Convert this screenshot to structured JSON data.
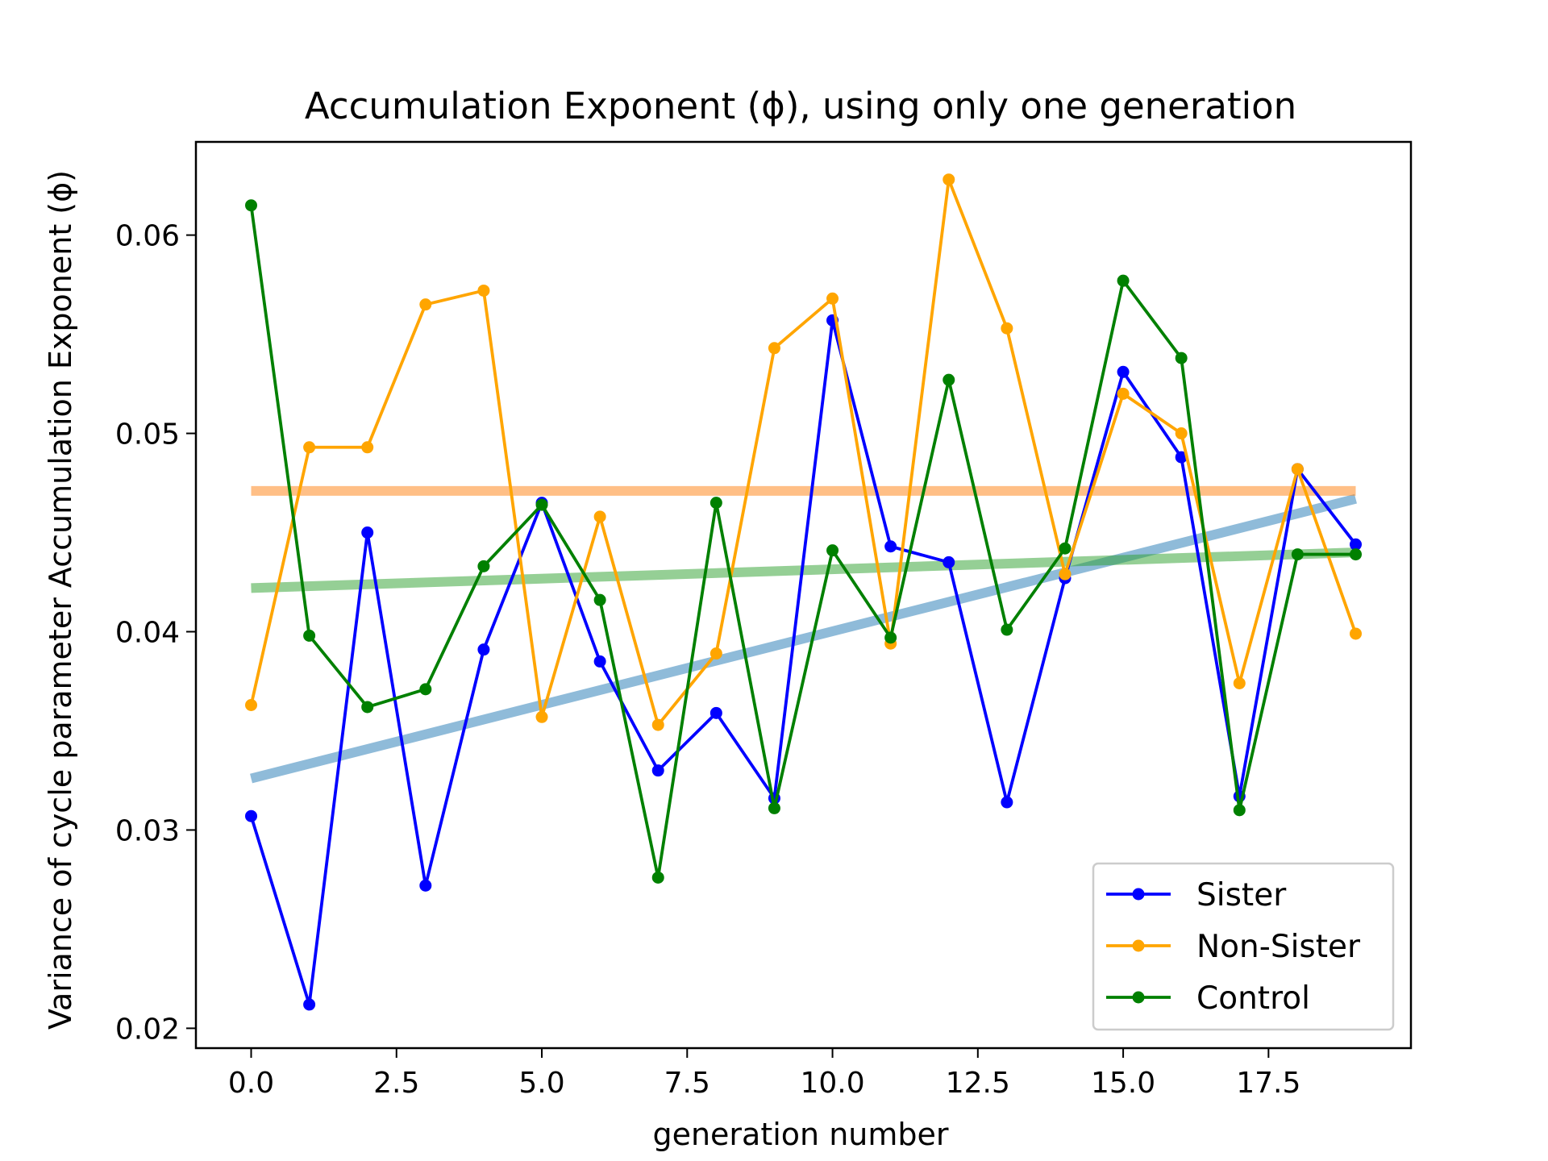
{
  "chart_data": {
    "type": "line",
    "title": "Accumulation Exponent (ϕ), using only one generation",
    "xlabel": "generation number",
    "ylabel": "Variance of cycle parameter Accumulation Exponent (ϕ)",
    "xlim": [
      -0.95,
      19.95
    ],
    "ylim": [
      0.019,
      0.0647
    ],
    "xticks": [
      0.0,
      2.5,
      5.0,
      7.5,
      10.0,
      12.5,
      15.0,
      17.5
    ],
    "xtick_labels": [
      "0.0",
      "2.5",
      "5.0",
      "7.5",
      "10.0",
      "12.5",
      "15.0",
      "17.5"
    ],
    "yticks": [
      0.02,
      0.03,
      0.04,
      0.05,
      0.06
    ],
    "ytick_labels": [
      "0.02",
      "0.03",
      "0.04",
      "0.05",
      "0.06"
    ],
    "grid": false,
    "legend_position": "lower-right",
    "x": [
      0,
      1,
      2,
      3,
      4,
      5,
      6,
      7,
      8,
      9,
      10,
      11,
      12,
      13,
      14,
      15,
      16,
      17,
      18,
      19
    ],
    "series": [
      {
        "name": "Sister",
        "color": "#0000ff",
        "values": [
          0.0307,
          0.0212,
          0.045,
          0.0272,
          0.0391,
          0.0465,
          0.0385,
          0.033,
          0.0359,
          0.0316,
          0.0557,
          0.0443,
          0.0435,
          0.0314,
          0.0427,
          0.0531,
          0.0488,
          0.0317,
          0.0482,
          0.0444
        ]
      },
      {
        "name": "Non-Sister",
        "color": "#ffa500",
        "values": [
          0.0363,
          0.0493,
          0.0493,
          0.0565,
          0.0572,
          0.0357,
          0.0458,
          0.0353,
          0.0389,
          0.0543,
          0.0568,
          0.0394,
          0.0628,
          0.0553,
          0.0429,
          0.052,
          0.05,
          0.0374,
          0.0482,
          0.0399
        ]
      },
      {
        "name": "Control",
        "color": "#008000",
        "values": [
          0.0615,
          0.0398,
          0.0362,
          0.0371,
          0.0433,
          0.0464,
          0.0416,
          0.0276,
          0.0465,
          0.0311,
          0.0441,
          0.0397,
          0.0527,
          0.0401,
          0.0442,
          0.0577,
          0.0538,
          0.031,
          0.0439,
          0.0439
        ]
      }
    ],
    "trend_lines": [
      {
        "series": "Sister",
        "color": "#1f77b4",
        "x": [
          0,
          19
        ],
        "y": [
          0.0326,
          0.0467
        ]
      },
      {
        "series": "Non-Sister",
        "color": "#ff7f0e",
        "x": [
          0,
          19
        ],
        "y": [
          0.0471,
          0.0471
        ]
      },
      {
        "series": "Control",
        "color": "#2ca02c",
        "x": [
          0,
          19
        ],
        "y": [
          0.0422,
          0.044
        ]
      }
    ]
  }
}
